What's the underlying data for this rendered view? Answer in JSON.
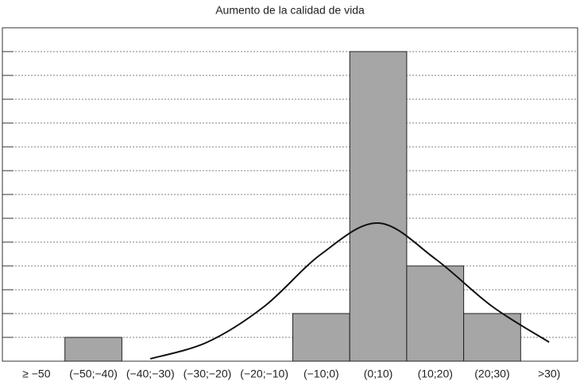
{
  "chart_data": {
    "type": "bar",
    "title": "Aumento de la calidad de vida",
    "categories": [
      "≥ −50",
      "(−50;−40)",
      "(−40;−30)",
      "(−30;−20)",
      "(−20;−10)",
      "(−10;0)",
      "(0;10)",
      "(10;20)",
      "(20;30)",
      ">30)"
    ],
    "series": [
      {
        "type": "bar",
        "color": "#a6a6a6",
        "values": [
          0,
          1,
          0,
          0,
          0,
          2,
          13,
          4,
          2,
          0
        ]
      },
      {
        "type": "line",
        "color": "#111111",
        "values": [
          null,
          null,
          0.1,
          0.8,
          2.3,
          4.5,
          5.8,
          4.3,
          2.3,
          0.8
        ]
      }
    ],
    "ylim": [
      0,
      14
    ],
    "yticks": [
      1,
      2,
      3,
      4,
      5,
      6,
      7,
      8,
      9,
      10,
      11,
      12,
      13
    ],
    "grid": true
  }
}
